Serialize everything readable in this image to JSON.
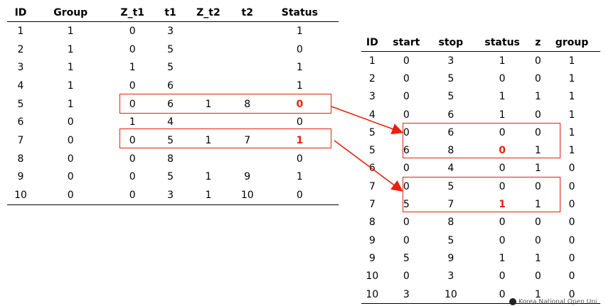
{
  "left_table": {
    "headers": [
      "ID",
      "Group",
      "Z_t1",
      "t1",
      "Z_t2",
      "t2",
      "Status"
    ],
    "rows": [
      [
        "1",
        "1",
        "0",
        "3",
        "",
        "",
        "1"
      ],
      [
        "2",
        "1",
        "0",
        "5",
        "",
        "",
        "0"
      ],
      [
        "3",
        "1",
        "1",
        "5",
        "",
        "",
        "1"
      ],
      [
        "4",
        "1",
        "0",
        "6",
        "",
        "",
        "1"
      ],
      [
        "5",
        "1",
        "0",
        "6",
        "1",
        "8",
        "0"
      ],
      [
        "6",
        "0",
        "1",
        "4",
        "",
        "",
        "0"
      ],
      [
        "7",
        "0",
        "0",
        "5",
        "1",
        "7",
        "1"
      ],
      [
        "8",
        "0",
        "0",
        "8",
        "",
        "",
        "0"
      ],
      [
        "9",
        "0",
        "0",
        "5",
        "1",
        "9",
        "1"
      ],
      [
        "10",
        "0",
        "0",
        "3",
        "1",
        "10",
        "0"
      ]
    ]
  },
  "right_table": {
    "headers": [
      "ID",
      "start",
      "stop",
      "status",
      "z",
      "group"
    ],
    "rows": [
      [
        "1",
        "0",
        "3",
        "1",
        "0",
        "1"
      ],
      [
        "2",
        "0",
        "5",
        "0",
        "0",
        "1"
      ],
      [
        "3",
        "0",
        "5",
        "1",
        "1",
        "1"
      ],
      [
        "4",
        "0",
        "6",
        "1",
        "0",
        "1"
      ],
      [
        "5",
        "0",
        "6",
        "0",
        "0",
        "1"
      ],
      [
        "5",
        "6",
        "8",
        "0",
        "1",
        "1"
      ],
      [
        "6",
        "0",
        "4",
        "0",
        "1",
        "0"
      ],
      [
        "7",
        "0",
        "5",
        "0",
        "0",
        "0"
      ],
      [
        "7",
        "5",
        "7",
        "1",
        "1",
        "0"
      ],
      [
        "8",
        "0",
        "8",
        "0",
        "0",
        "0"
      ],
      [
        "9",
        "0",
        "5",
        "0",
        "0",
        "0"
      ],
      [
        "9",
        "5",
        "9",
        "1",
        "1",
        "0"
      ],
      [
        "10",
        "0",
        "3",
        "0",
        "0",
        "0"
      ],
      [
        "10",
        "3",
        "10",
        "0",
        "1",
        "0"
      ]
    ]
  },
  "highlight_color": "#e8200c",
  "footer_text": "Korea National Open Uni"
}
